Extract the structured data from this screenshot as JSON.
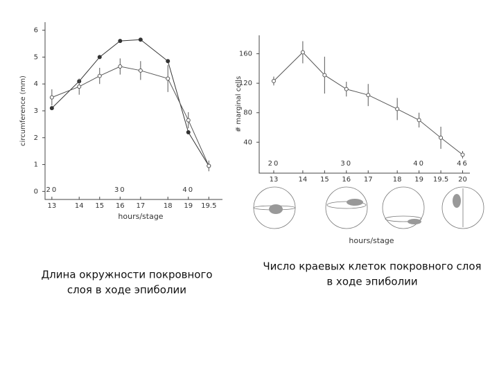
{
  "chart_data": [
    {
      "type": "line",
      "y_label": "circumference (mm)",
      "x_label": "hours/stage",
      "caption": [
        "Длина окружности покровного",
        "слоя в ходе эпиболии"
      ],
      "xlim": [
        19,
        45
      ],
      "ylim": [
        -0.3,
        6.3
      ],
      "yticks": [
        0,
        1,
        2,
        3,
        4,
        5,
        6
      ],
      "xticks": [
        {
          "value": 20,
          "label": "13"
        },
        {
          "value": 24,
          "label": "14"
        },
        {
          "value": 27,
          "label": "15"
        },
        {
          "value": 30,
          "label": "16"
        },
        {
          "value": 33,
          "label": "17"
        },
        {
          "value": 37,
          "label": "18"
        },
        {
          "value": 40,
          "label": "19"
        },
        {
          "value": 43,
          "label": "19.5"
        }
      ],
      "x2ticks": [
        20,
        30,
        40
      ],
      "x": [
        20,
        24,
        27,
        30,
        33,
        37,
        40,
        43
      ],
      "series": [
        {
          "color": "#333333",
          "marker": "filled",
          "values": [
            3.1,
            4.1,
            5.0,
            5.6,
            5.65,
            4.85,
            2.2,
            0.95
          ]
        },
        {
          "color": "#555555",
          "marker": "open",
          "values": [
            3.5,
            3.9,
            4.3,
            4.65,
            4.5,
            4.2,
            2.65,
            0.95
          ],
          "errors": [
            0.3,
            0.3,
            0.3,
            0.3,
            0.35,
            0.5,
            0.3,
            0.2
          ]
        }
      ]
    },
    {
      "type": "line",
      "y_label": "# marginal cells",
      "x_label": "hours/stage",
      "caption": [
        "Число краевых клеток покровного слоя",
        "в ходе эпиболии"
      ],
      "xlim": [
        18,
        47
      ],
      "ylim": [
        -2,
        185
      ],
      "yticks": [
        40,
        80,
        120,
        160
      ],
      "xticks": [
        {
          "value": 20,
          "label": "13"
        },
        {
          "value": 24,
          "label": "14"
        },
        {
          "value": 27,
          "label": "15"
        },
        {
          "value": 30,
          "label": "16"
        },
        {
          "value": 33,
          "label": "17"
        },
        {
          "value": 37,
          "label": "18"
        },
        {
          "value": 40,
          "label": "19"
        },
        {
          "value": 43,
          "label": "19.5"
        },
        {
          "value": 46,
          "label": "20"
        }
      ],
      "x2ticks": [
        20,
        30,
        40,
        46
      ],
      "x": [
        20,
        24,
        27,
        30,
        33,
        37,
        40,
        43,
        46
      ],
      "series": [
        {
          "color": "#555555",
          "marker": "open",
          "values": [
            123,
            162,
            131,
            112,
            104,
            85,
            70,
            46,
            23
          ],
          "errors": [
            6,
            15,
            25,
            10,
            15,
            15,
            10,
            15,
            5
          ]
        }
      ]
    }
  ]
}
